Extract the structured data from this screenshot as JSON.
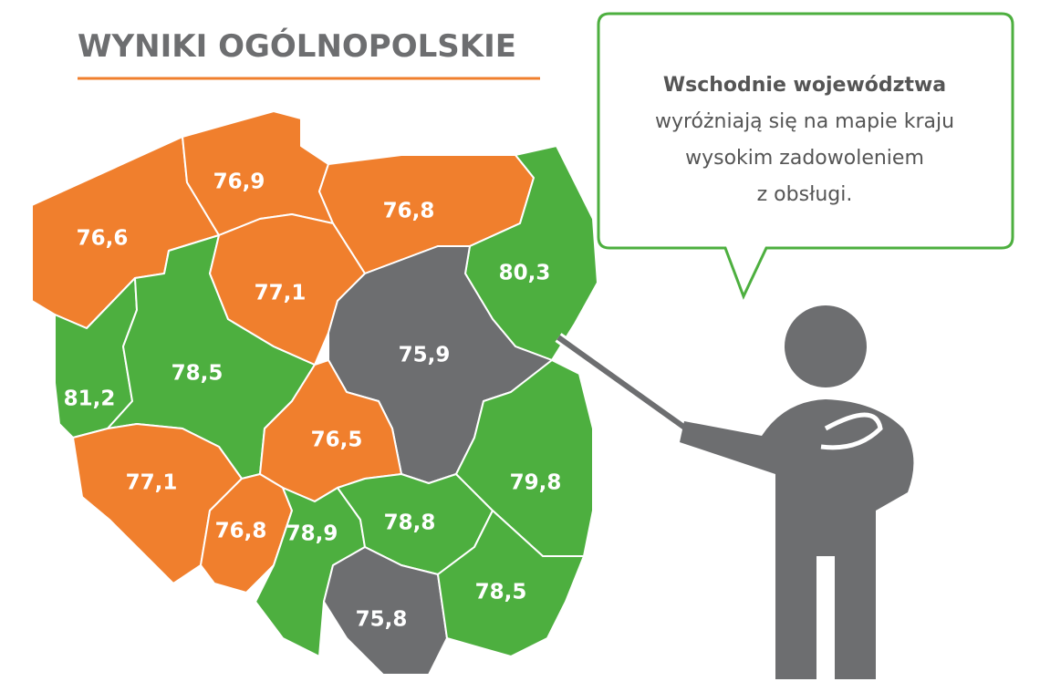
{
  "header": {
    "title": "WYNIKI OGÓLNOPOLSKIE"
  },
  "callout": {
    "lines": [
      "Wschodnie województwa",
      "wyróżniają się na mapie kraju",
      "wysokim zadowoleniem",
      "z obsługi."
    ]
  },
  "regions": [
    {
      "label": "76,6",
      "color": "#f07f2d"
    },
    {
      "label": "76,9",
      "color": "#f07f2d"
    },
    {
      "label": "76,8",
      "color": "#f07f2d"
    },
    {
      "label": "80,3",
      "color": "#4daf3f"
    },
    {
      "label": "81,2",
      "color": "#4daf3f"
    },
    {
      "label": "78,5",
      "color": "#4daf3f"
    },
    {
      "label": "77,1",
      "color": "#f07f2d"
    },
    {
      "label": "75,9",
      "color": "#6d6e70"
    },
    {
      "label": "76,5",
      "color": "#f07f2d"
    },
    {
      "label": "77,1",
      "color": "#f07f2d"
    },
    {
      "label": "76,8",
      "color": "#f07f2d"
    },
    {
      "label": "78,9",
      "color": "#4daf3f"
    },
    {
      "label": "78,8",
      "color": "#4daf3f"
    },
    {
      "label": "79,8",
      "color": "#4daf3f"
    },
    {
      "label": "75,8",
      "color": "#6d6e70"
    },
    {
      "label": "78,5",
      "color": "#4daf3f"
    }
  ]
}
